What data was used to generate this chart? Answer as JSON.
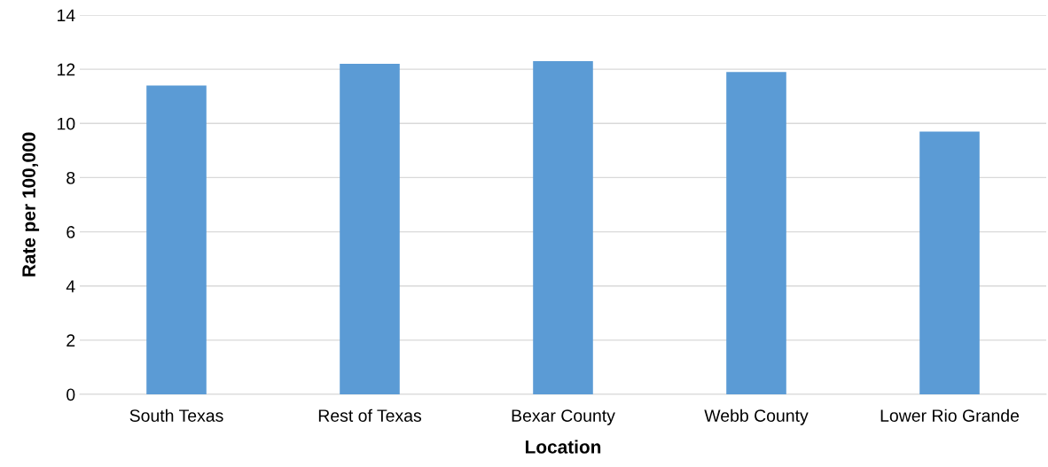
{
  "chart_data": {
    "type": "bar",
    "xlabel": "Location",
    "ylabel": "Rate per 100,000",
    "categories": [
      "South Texas",
      "Rest of Texas",
      "Bexar County",
      "Webb County",
      "Lower Rio Grande"
    ],
    "values": [
      11.4,
      12.2,
      12.3,
      11.9,
      9.7
    ],
    "color": "#5b9bd5",
    "ylim": [
      0,
      14
    ],
    "yticks": [
      0,
      2,
      4,
      6,
      8,
      10,
      12,
      14
    ],
    "grid": "y",
    "legend": false
  }
}
